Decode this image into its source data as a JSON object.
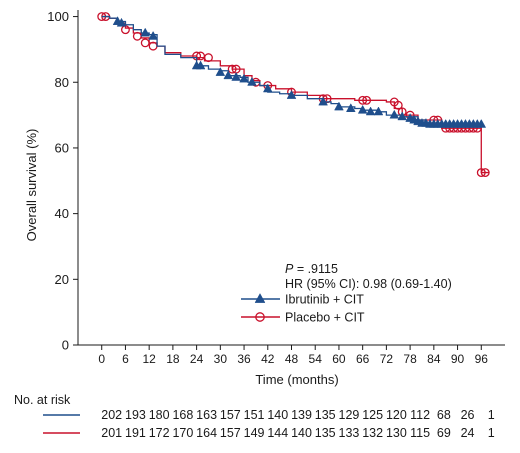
{
  "chart_data": {
    "type": "line",
    "ylabel": "Overall survival (%)",
    "xlabel": "Time (months)",
    "xlim": [
      -6,
      102
    ],
    "ylim": [
      0,
      102
    ],
    "x_ticks": [
      0,
      6,
      12,
      18,
      24,
      30,
      36,
      42,
      48,
      54,
      60,
      66,
      72,
      78,
      84,
      90,
      96
    ],
    "y_ticks": [
      0,
      20,
      40,
      60,
      80,
      100
    ],
    "annotation": {
      "p_label": "P",
      "p_text": " = .9115",
      "hr_text": "HR (95% CI): 0.98 (0.69-1.40)"
    },
    "legend_position": "lower-right",
    "series": [
      {
        "name": "Ibrutinib + CIT",
        "color": "#1f4e8c",
        "marker": "triangle",
        "steps": [
          [
            0,
            100
          ],
          [
            2,
            99.5
          ],
          [
            4,
            98.5
          ],
          [
            6,
            97.5
          ],
          [
            8,
            96
          ],
          [
            10,
            95
          ],
          [
            12,
            94.5
          ],
          [
            14,
            91
          ],
          [
            16,
            88.5
          ],
          [
            20,
            87.5
          ],
          [
            24,
            85
          ],
          [
            27,
            84
          ],
          [
            30,
            83.5
          ],
          [
            32,
            82
          ],
          [
            35,
            81.5
          ],
          [
            37,
            80
          ],
          [
            40,
            79
          ],
          [
            42,
            77
          ],
          [
            45,
            76.5
          ],
          [
            48,
            76
          ],
          [
            52,
            75
          ],
          [
            56,
            74
          ],
          [
            58,
            73.5
          ],
          [
            60,
            72.5
          ],
          [
            64,
            72
          ],
          [
            66,
            71.5
          ],
          [
            70,
            71
          ],
          [
            72,
            70
          ],
          [
            76,
            69.5
          ],
          [
            80,
            68.5
          ],
          [
            82,
            67.5
          ],
          [
            84,
            67.2
          ],
          [
            96,
            67.2
          ]
        ],
        "markers": [
          [
            4,
            98.5
          ],
          [
            5,
            98
          ],
          [
            11,
            95
          ],
          [
            13,
            94
          ],
          [
            24,
            85
          ],
          [
            25,
            85
          ],
          [
            30,
            83
          ],
          [
            32,
            82
          ],
          [
            34,
            81.5
          ],
          [
            36,
            81
          ],
          [
            38,
            80
          ],
          [
            42,
            78
          ],
          [
            48,
            76
          ],
          [
            56,
            74
          ],
          [
            60,
            72.5
          ],
          [
            63,
            72
          ],
          [
            66,
            71.5
          ],
          [
            68,
            71
          ],
          [
            70,
            71
          ],
          [
            74,
            70
          ],
          [
            76,
            69.5
          ],
          [
            78,
            69
          ],
          [
            79,
            68.5
          ],
          [
            80,
            68
          ],
          [
            81,
            67.5
          ],
          [
            82,
            67.5
          ],
          [
            83,
            67.2
          ],
          [
            84,
            67.2
          ],
          [
            85,
            67.2
          ],
          [
            86,
            67.2
          ],
          [
            87,
            67.2
          ],
          [
            88,
            67.2
          ],
          [
            89,
            67.2
          ],
          [
            90,
            67.2
          ],
          [
            91,
            67.2
          ],
          [
            92,
            67.2
          ],
          [
            93,
            67.2
          ],
          [
            94,
            67.2
          ],
          [
            95,
            67.2
          ],
          [
            96,
            67.2
          ]
        ]
      },
      {
        "name": "Placebo + CIT",
        "color": "#c9102b",
        "marker": "circle",
        "steps": [
          [
            0,
            100
          ],
          [
            2,
            99.5
          ],
          [
            4,
            98
          ],
          [
            6,
            96.5
          ],
          [
            8,
            95
          ],
          [
            10,
            93.5
          ],
          [
            12,
            92
          ],
          [
            14,
            91
          ],
          [
            16,
            89
          ],
          [
            20,
            88
          ],
          [
            24,
            87.5
          ],
          [
            26,
            86.5
          ],
          [
            30,
            85
          ],
          [
            33,
            84
          ],
          [
            36,
            82
          ],
          [
            38,
            80.5
          ],
          [
            40,
            79
          ],
          [
            44,
            78
          ],
          [
            48,
            77
          ],
          [
            52,
            76
          ],
          [
            56,
            75
          ],
          [
            64,
            74.5
          ],
          [
            68,
            74.5
          ],
          [
            72,
            74
          ],
          [
            74,
            72
          ],
          [
            76,
            70
          ],
          [
            80,
            68.5
          ],
          [
            84,
            68.5
          ],
          [
            86,
            66
          ],
          [
            96,
            66
          ],
          [
            96,
            52.5
          ],
          [
            98,
            52.5
          ]
        ],
        "markers": [
          [
            0,
            100
          ],
          [
            1,
            100
          ],
          [
            6,
            96
          ],
          [
            9,
            94
          ],
          [
            11,
            92
          ],
          [
            13,
            91
          ],
          [
            24,
            88
          ],
          [
            25,
            88
          ],
          [
            27,
            87.5
          ],
          [
            33,
            84
          ],
          [
            34,
            84
          ],
          [
            39,
            80
          ],
          [
            42,
            79
          ],
          [
            48,
            77
          ],
          [
            56,
            75
          ],
          [
            57,
            75
          ],
          [
            66,
            74.5
          ],
          [
            67,
            74.5
          ],
          [
            74,
            74
          ],
          [
            75,
            73
          ],
          [
            76,
            71
          ],
          [
            78,
            70
          ],
          [
            84,
            68.5
          ],
          [
            85,
            68.5
          ],
          [
            87,
            66
          ],
          [
            88,
            66
          ],
          [
            89,
            66
          ],
          [
            90,
            66
          ],
          [
            91,
            66
          ],
          [
            92,
            66
          ],
          [
            93,
            66
          ],
          [
            94,
            66
          ],
          [
            95,
            66
          ],
          [
            96,
            52.5
          ],
          [
            97,
            52.5
          ]
        ]
      }
    ],
    "risk_table": {
      "title": "No. at risk",
      "rows": [
        {
          "color": "#1f4e8c",
          "values": [
            "202",
            "193",
            "180",
            "168",
            "163",
            "157",
            "151",
            "140",
            "139",
            "135",
            "129",
            "125",
            "120",
            "112",
            "68",
            "26",
            "1"
          ]
        },
        {
          "color": "#c9102b",
          "values": [
            "201",
            "191",
            "172",
            "170",
            "164",
            "157",
            "149",
            "144",
            "140",
            "135",
            "133",
            "132",
            "130",
            "115",
            "69",
            "24",
            "1"
          ]
        }
      ]
    }
  }
}
